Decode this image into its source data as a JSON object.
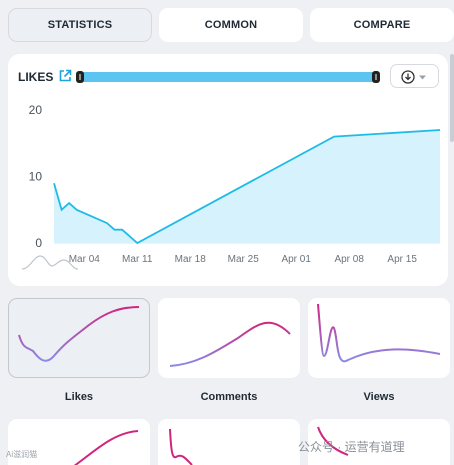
{
  "tabs": [
    {
      "label": "STATISTICS",
      "active": true
    },
    {
      "label": "COMMON",
      "active": false
    },
    {
      "label": "COMPARE",
      "active": false
    }
  ],
  "main_chart": {
    "title": "LIKES",
    "icons": {
      "external": "external-link-icon",
      "download": "download-icon",
      "dropdown": "chevron-down-icon"
    },
    "colors": {
      "line": "#1ebbe8",
      "fill": "#d6f2fc",
      "range": "#5cc4f0"
    },
    "chart_data": {
      "type": "area",
      "y_ticks": [
        "20",
        "10",
        "0"
      ],
      "x_ticks": [
        "Mar 04",
        "Mar 11",
        "Mar 18",
        "Mar 25",
        "Apr 01",
        "Apr 08",
        "Apr 15"
      ],
      "ylim": [
        0,
        20
      ],
      "x": [
        "Feb 29",
        "Mar 01",
        "Mar 02",
        "Mar 03",
        "Mar 05",
        "Mar 07",
        "Mar 08",
        "Mar 09",
        "Mar 10",
        "Mar 11",
        "Apr 06",
        "Apr 20"
      ],
      "values": [
        9,
        5,
        6,
        5,
        4,
        3,
        2,
        2,
        1,
        0,
        16,
        17
      ],
      "grid": false
    }
  },
  "mini_charts": [
    {
      "label": "Likes",
      "active": true
    },
    {
      "label": "Comments",
      "active": false
    },
    {
      "label": "Views",
      "active": false
    }
  ],
  "watermark": {
    "left": "Ai滋润猫",
    "right": "公众号 · 运营有道理"
  }
}
